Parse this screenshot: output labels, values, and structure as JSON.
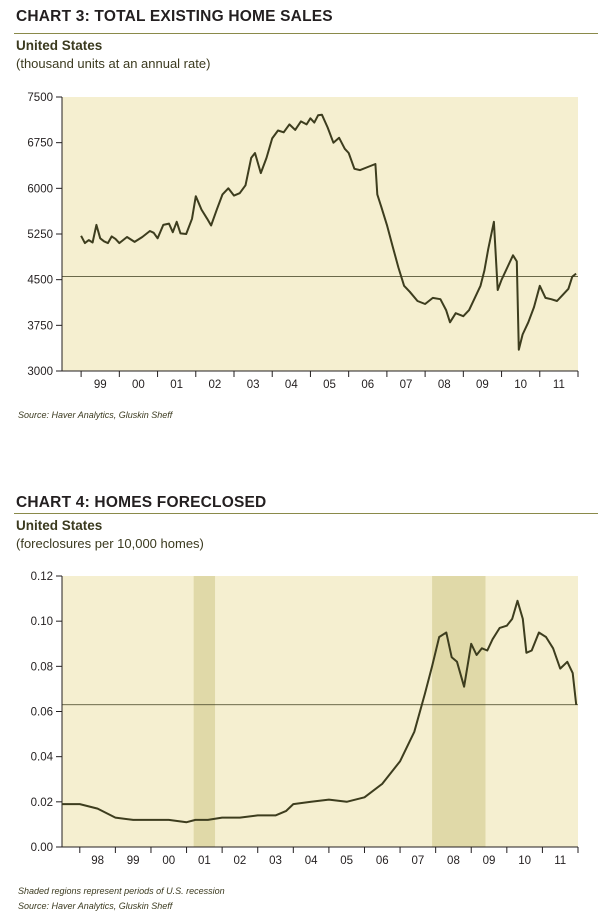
{
  "charts": [
    {
      "title": "CHART 3: TOTAL EXISTING HOME SALES",
      "subtitle": "United States",
      "units": "(thousand units at an annual rate)",
      "source": "Source: Haver Analytics, Gluskin Sheff"
    },
    {
      "title": "CHART 4: HOMES FORECLOSED",
      "subtitle": "United States",
      "units": "(foreclosures per 10,000 homes)",
      "note": "Shaded regions represent periods of U.S. recession",
      "source": "Source: Haver Analytics, Gluskin Sheff"
    }
  ],
  "colors": {
    "plot_bg": "#f5efd0",
    "line": "#3d3d1e",
    "recession": "#e0d9a8",
    "rule": "#8a8a4a"
  },
  "chart_data": [
    {
      "type": "line",
      "title": "CHART 3: TOTAL EXISTING HOME SALES",
      "subtitle": "United States",
      "ylabel": "(thousand units at an annual rate)",
      "xlim": [
        1998.5,
        2012.0
      ],
      "ylim": [
        3000,
        7500
      ],
      "yticks": [
        3000,
        3750,
        4500,
        5250,
        6000,
        6750,
        7500
      ],
      "ytick_labels": [
        "3000",
        "3750",
        "4500",
        "5250",
        "6000",
        "6750",
        "7500"
      ],
      "xtick_labels": [
        "99",
        "00",
        "01",
        "02",
        "03",
        "04",
        "05",
        "06",
        "07",
        "08",
        "09",
        "10",
        "11"
      ],
      "reference_line": 4550,
      "grid": false,
      "series": [
        {
          "x": [
            1999.0,
            1999.1,
            1999.2,
            1999.3,
            1999.4,
            1999.5,
            1999.6,
            1999.7,
            1999.8,
            1999.9,
            2000.0,
            2000.2,
            2000.4,
            2000.6,
            2000.8,
            2000.9,
            2001.0,
            2001.15,
            2001.3,
            2001.4,
            2001.5,
            2001.6,
            2001.75,
            2001.9,
            2002.0,
            2002.15,
            2002.3,
            2002.4,
            2002.55,
            2002.7,
            2002.85,
            2003.0,
            2003.15,
            2003.3,
            2003.45,
            2003.55,
            2003.7,
            2003.85,
            2004.0,
            2004.15,
            2004.3,
            2004.45,
            2004.6,
            2004.75,
            2004.9,
            2005.0,
            2005.1,
            2005.2,
            2005.3,
            2005.45,
            2005.6,
            2005.75,
            2005.9,
            2006.0,
            2006.15,
            2006.3,
            2006.5,
            2006.7,
            2006.75,
            2006.85,
            2007.0,
            2007.15,
            2007.3,
            2007.45,
            2007.6,
            2007.8,
            2008.0,
            2008.2,
            2008.4,
            2008.55,
            2008.65,
            2008.8,
            2009.0,
            2009.15,
            2009.3,
            2009.45,
            2009.55,
            2009.65,
            2009.8,
            2009.9,
            2010.0,
            2010.15,
            2010.3,
            2010.4,
            2010.45,
            2010.55,
            2010.7,
            2010.85,
            2011.0,
            2011.15,
            2011.3,
            2011.45,
            2011.6,
            2011.75,
            2011.85,
            2011.95
          ],
          "values": [
            5220,
            5100,
            5150,
            5110,
            5400,
            5180,
            5130,
            5100,
            5210,
            5170,
            5100,
            5200,
            5120,
            5200,
            5300,
            5270,
            5180,
            5400,
            5420,
            5280,
            5450,
            5260,
            5250,
            5500,
            5870,
            5650,
            5500,
            5390,
            5650,
            5900,
            6000,
            5880,
            5920,
            6050,
            6500,
            6580,
            6250,
            6500,
            6820,
            6950,
            6920,
            7050,
            6960,
            7100,
            7050,
            7150,
            7080,
            7200,
            7210,
            7000,
            6750,
            6830,
            6650,
            6580,
            6320,
            6300,
            6350,
            6400,
            5900,
            5700,
            5400,
            5050,
            4700,
            4400,
            4300,
            4150,
            4100,
            4200,
            4180,
            4000,
            3800,
            3950,
            3900,
            4000,
            4200,
            4400,
            4650,
            5000,
            5450,
            4330,
            4500,
            4700,
            4900,
            4800,
            3350,
            3600,
            3800,
            4050,
            4400,
            4200,
            4180,
            4150,
            4250,
            4350,
            4550,
            4600
          ]
        }
      ]
    },
    {
      "type": "line",
      "title": "CHART 4: HOMES FORECLOSED",
      "subtitle": "United States",
      "ylabel": "(foreclosures per 10,000 homes)",
      "xlim": [
        1997.5,
        2012.0
      ],
      "ylim": [
        0.0,
        0.12
      ],
      "yticks": [
        0.0,
        0.02,
        0.04,
        0.06,
        0.08,
        0.1,
        0.12
      ],
      "ytick_labels": [
        "0.00",
        "0.02",
        "0.04",
        "0.06",
        "0.08",
        "0.10",
        "0.12"
      ],
      "xtick_labels": [
        "98",
        "99",
        "00",
        "01",
        "02",
        "03",
        "04",
        "05",
        "06",
        "07",
        "08",
        "09",
        "10",
        "11"
      ],
      "reference_line": 0.063,
      "recession_bands": [
        [
          2001.2,
          2001.8
        ],
        [
          2007.9,
          2009.4
        ]
      ],
      "grid": false,
      "series": [
        {
          "x": [
            1997.5,
            1998.0,
            1998.5,
            1999.0,
            1999.5,
            2000.0,
            2000.5,
            2001.0,
            2001.25,
            2001.6,
            2002.0,
            2002.5,
            2003.0,
            2003.5,
            2003.8,
            2004.0,
            2004.5,
            2005.0,
            2005.5,
            2006.0,
            2006.5,
            2007.0,
            2007.4,
            2007.7,
            2007.9,
            2008.1,
            2008.3,
            2008.45,
            2008.6,
            2008.8,
            2009.0,
            2009.15,
            2009.3,
            2009.45,
            2009.6,
            2009.8,
            2010.0,
            2010.15,
            2010.3,
            2010.45,
            2010.55,
            2010.7,
            2010.9,
            2011.1,
            2011.3,
            2011.5,
            2011.7,
            2011.85,
            2011.95
          ],
          "values": [
            0.019,
            0.019,
            0.017,
            0.013,
            0.012,
            0.012,
            0.012,
            0.011,
            0.012,
            0.012,
            0.013,
            0.013,
            0.014,
            0.014,
            0.016,
            0.019,
            0.02,
            0.021,
            0.02,
            0.022,
            0.028,
            0.038,
            0.051,
            0.068,
            0.08,
            0.093,
            0.095,
            0.084,
            0.082,
            0.071,
            0.09,
            0.085,
            0.088,
            0.087,
            0.092,
            0.097,
            0.098,
            0.101,
            0.109,
            0.101,
            0.086,
            0.087,
            0.095,
            0.093,
            0.088,
            0.079,
            0.082,
            0.077,
            0.063
          ]
        }
      ]
    }
  ]
}
